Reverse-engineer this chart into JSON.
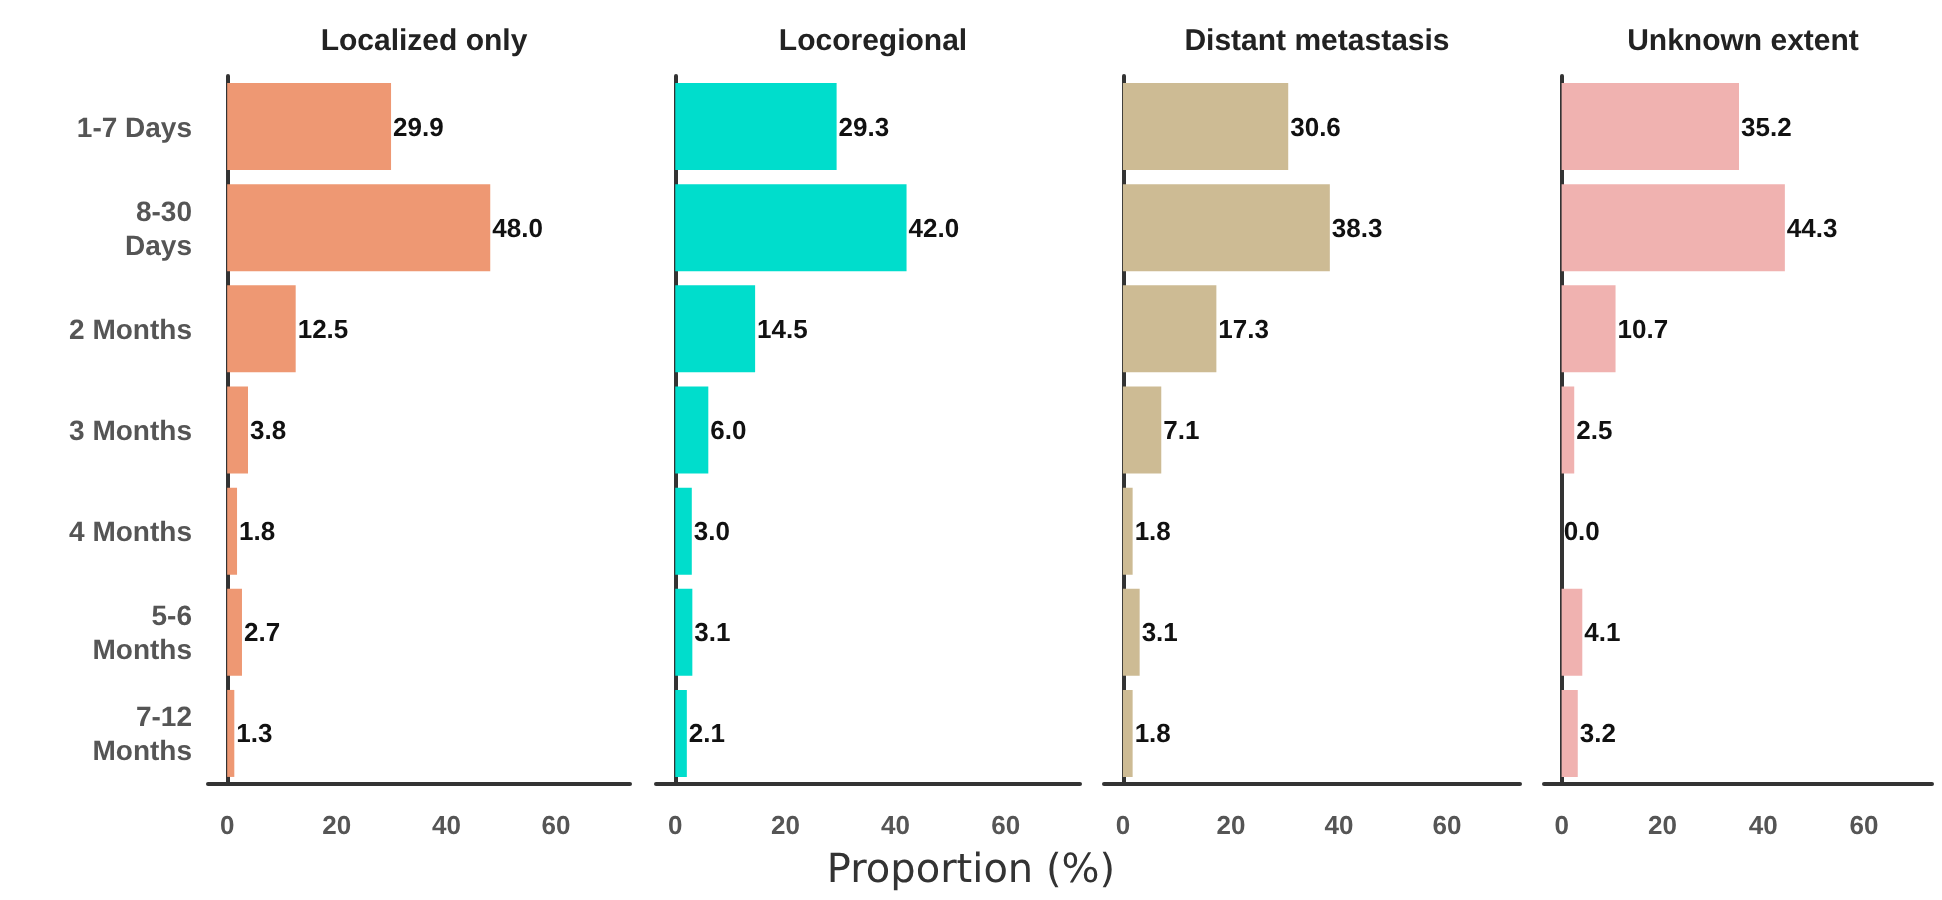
{
  "chart_data": [
    {
      "type": "bar",
      "orientation": "horizontal",
      "title": "Localized only",
      "xlabel": "Proportion (%)",
      "categories": [
        "1-7 Days",
        "8-30\nDays",
        "2 Months",
        "3 Months",
        "4 Months",
        "5-6\nMonths",
        "7-12\nMonths"
      ],
      "values": [
        29.9,
        48,
        12.5,
        3.8,
        1.8,
        2.7,
        1.3
      ],
      "value_labels": [
        "29.9",
        "48.0",
        "12.5",
        "3.8",
        "1.8",
        "2.7",
        "1.3"
      ],
      "color": "#ee9873",
      "xlim": [
        -3.5,
        73.5
      ],
      "xticks": [
        0,
        20,
        40,
        60
      ]
    },
    {
      "type": "bar",
      "orientation": "horizontal",
      "title": "Locoregional",
      "categories": [
        null,
        null,
        null,
        null,
        null,
        null,
        null
      ],
      "values": [
        29.3,
        42,
        14.5,
        6,
        3,
        3.1,
        2.1
      ],
      "value_labels": [
        "29.3",
        "42.0",
        "14.5",
        "6.0",
        "3.0",
        "3.1",
        "2.1"
      ],
      "color": "#00ddcc",
      "xlim": [
        -3.5,
        73.5
      ],
      "xticks": [
        0,
        20,
        40,
        60
      ],
      "tick_labels": "x"
    },
    {
      "type": "bar",
      "orientation": "horizontal",
      "title": "Distant metastasis",
      "categories": [
        null,
        null,
        null,
        null,
        null,
        null,
        null
      ],
      "values": [
        30.6,
        38.3,
        17.3,
        7.1,
        1.8,
        3.1,
        1.8
      ],
      "value_labels": [
        "30.6",
        "38.3",
        "17.3",
        "7.1",
        "1.8",
        "3.1",
        "1.8"
      ],
      "color": "#cdbb94",
      "xlim": [
        -3.5,
        73.5
      ],
      "xticks": [
        0,
        20,
        40,
        60
      ],
      "tick_labels": "x"
    },
    {
      "type": "bar",
      "orientation": "horizontal",
      "title": "Unknown extent",
      "categories": [
        null,
        null,
        null,
        null,
        null,
        null,
        null
      ],
      "values": [
        35.2,
        44.3,
        10.7,
        2.5,
        0,
        4.1,
        3.2
      ],
      "value_labels": [
        "35.2",
        "44.3",
        "10.7",
        "2.5",
        "0.0",
        "4.1",
        "3.2"
      ],
      "color": "#f0b2b0",
      "xlim": [
        -3.5,
        73.5
      ],
      "xticks": [
        0,
        20,
        40,
        60
      ],
      "tick_labels": "x"
    }
  ]
}
